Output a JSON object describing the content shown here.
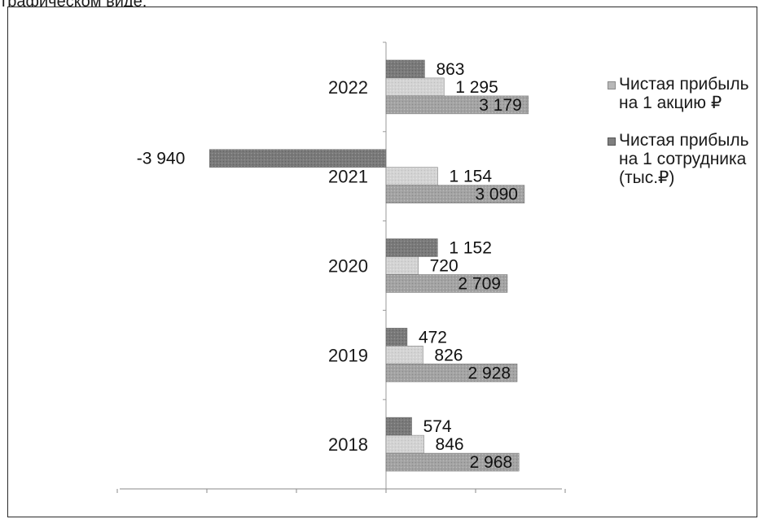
{
  "caption": "графическом виде:",
  "chart_data": {
    "type": "bar",
    "orientation": "horizontal",
    "categories": [
      "2018",
      "2019",
      "2020",
      "2021",
      "2022"
    ],
    "series": [
      {
        "name": "",
        "values": [
          574,
          472,
          1152,
          -3940,
          863
        ],
        "labels": [
          "574",
          "472",
          "1 152",
          "-3 940",
          "863"
        ],
        "color": "#7f7f7f"
      },
      {
        "name": "Чистая прибыль на 1 акцию ₽",
        "values": [
          846,
          826,
          720,
          1154,
          1295
        ],
        "labels": [
          "846",
          "826",
          "720",
          "1 154",
          "1 295"
        ],
        "color": "#d0d0d0"
      },
      {
        "name": "Чистая прибыль на 1 сотрудника (тыс.₽)",
        "values": [
          2968,
          2928,
          2709,
          3090,
          3179
        ],
        "labels": [
          "2 968",
          "2 928",
          "2 709",
          "3 090",
          "3 179"
        ],
        "color": "#a6a6a6"
      }
    ],
    "xlim": [
      -6000,
      4000
    ],
    "grid": false,
    "legend_position": "right"
  },
  "legend": [
    {
      "label": "Чистая прибыль на 1 акцию ₽",
      "color": "#b8b8b8"
    },
    {
      "label": "Чистая прибыль на 1 сотрудника (тыс.₽)",
      "color": "#7f7f7f"
    }
  ]
}
